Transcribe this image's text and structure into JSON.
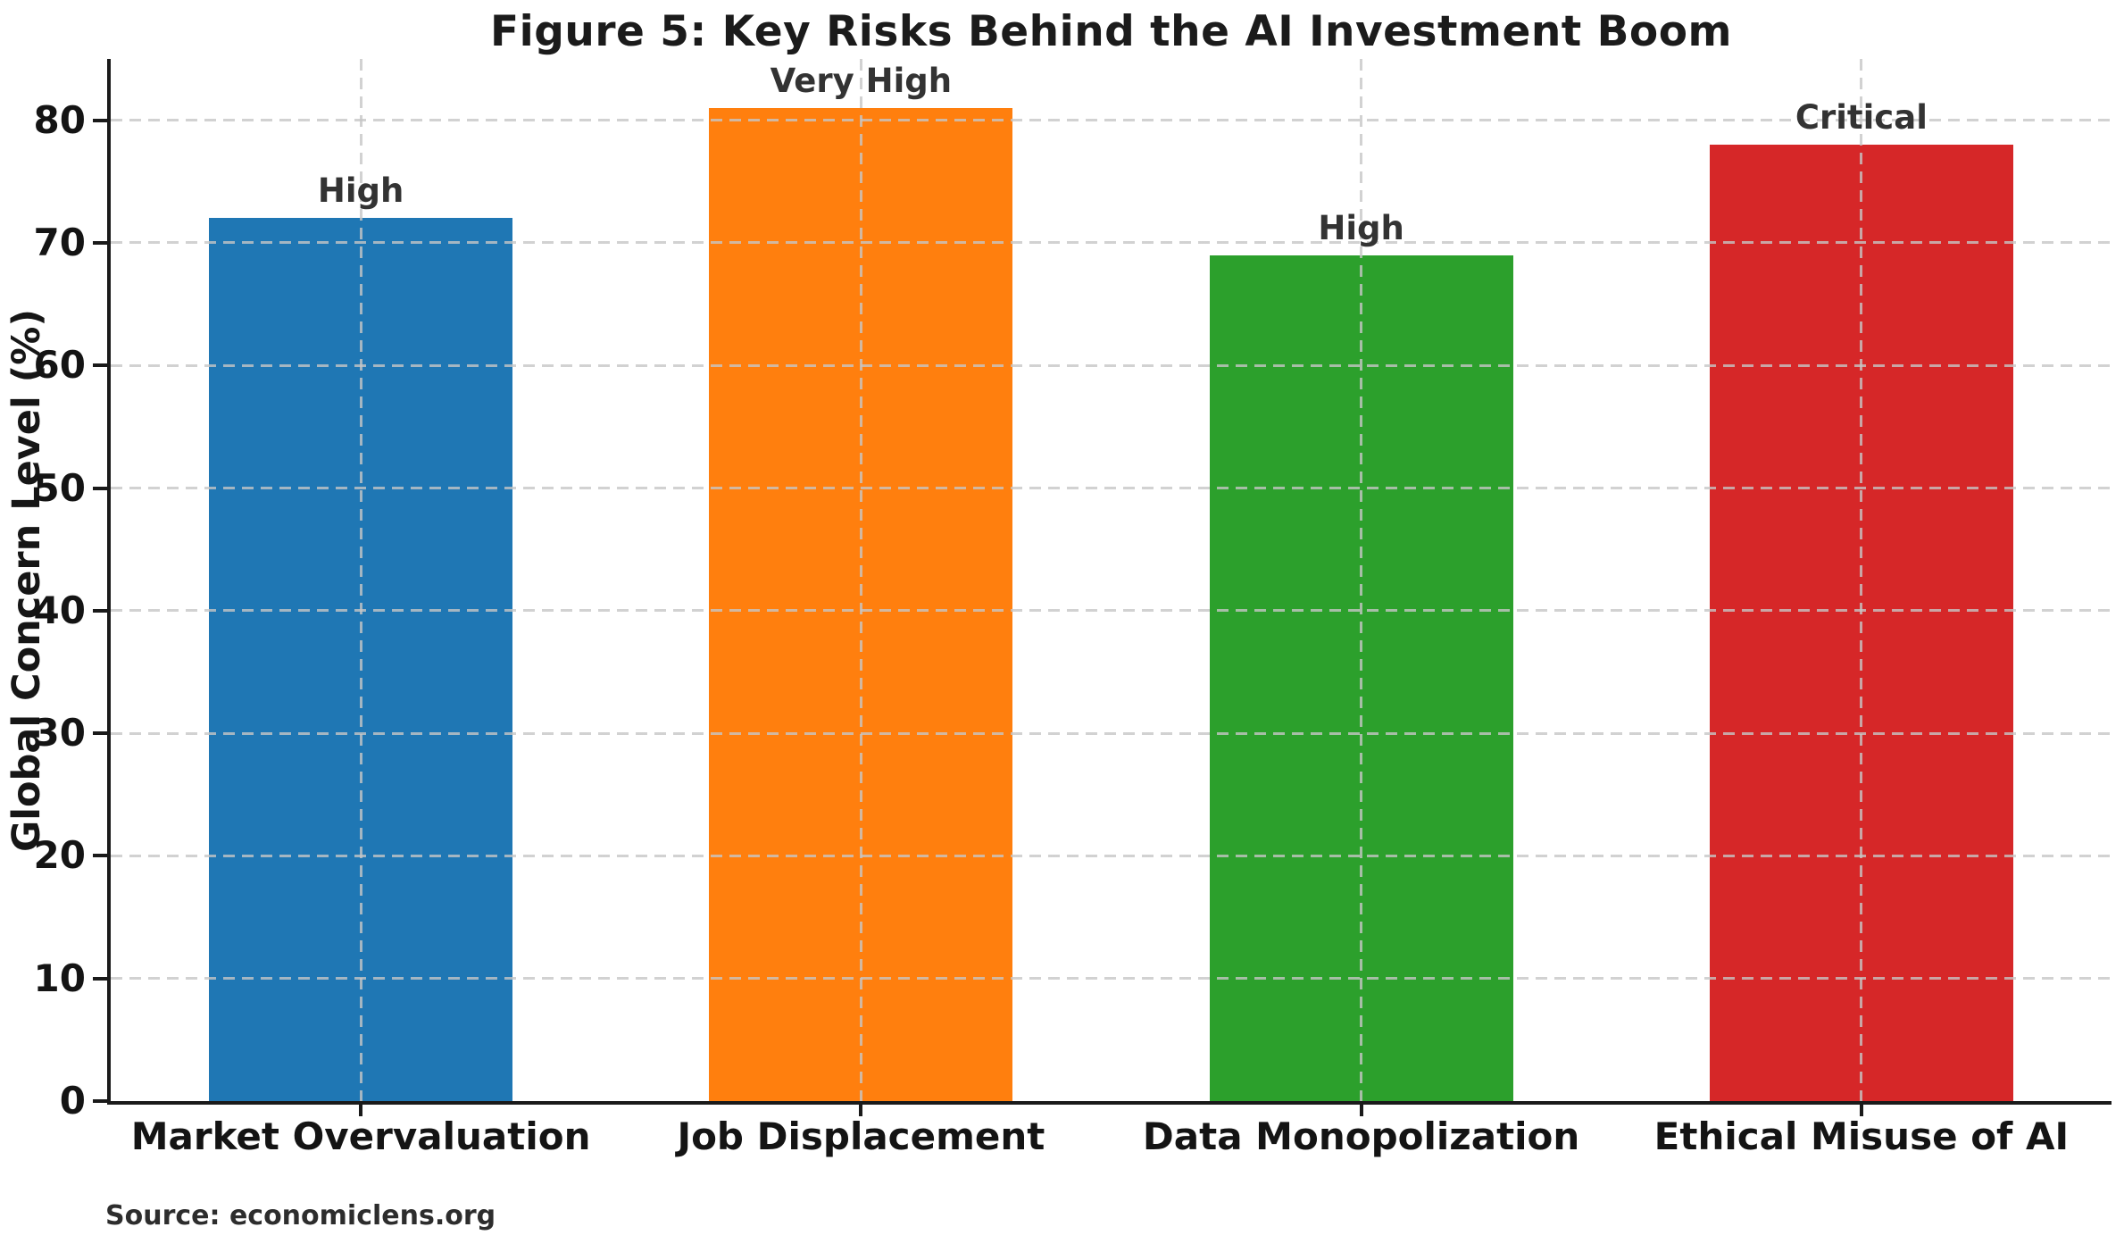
{
  "chart_data": {
    "type": "bar",
    "title": "Figure 5: Key Risks Behind the AI Investment Boom",
    "xlabel": "",
    "ylabel": "Global Concern Level (%)",
    "categories": [
      "Market Overvaluation",
      "Job Displacement",
      "Data Monopolization",
      "Ethical Misuse of AI"
    ],
    "values": [
      72,
      81,
      69,
      78
    ],
    "bar_labels": [
      "High",
      "Very High",
      "High",
      "Critical"
    ],
    "bar_colors": [
      "#1f77b4",
      "#ff7f0e",
      "#2ca02c",
      "#d62728"
    ],
    "ylim": [
      0,
      85
    ],
    "yticks": [
      0,
      10,
      20,
      30,
      40,
      50,
      60,
      70,
      80
    ],
    "grid": "dashed gray, both axes, drawn above bars",
    "legend_position": "none",
    "spine_color": "#1a1a1a",
    "grid_color": "#c6c6c6",
    "source": "Source: economiclens.org"
  }
}
